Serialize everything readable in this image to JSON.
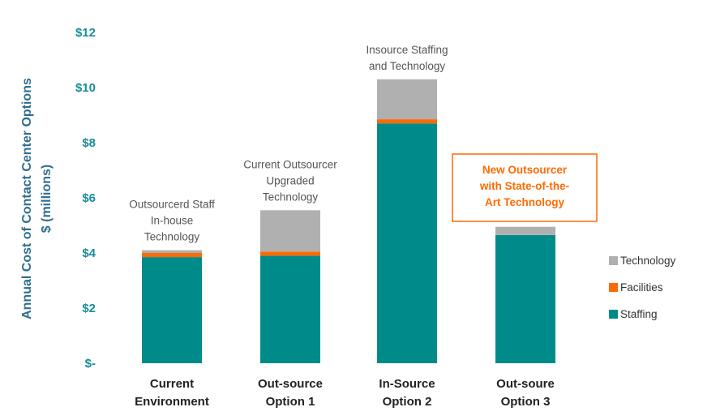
{
  "chart_data": {
    "type": "bar",
    "stacked": true,
    "ylabel_line1": "Annual Cost of Contact Center Options",
    "ylabel_line2": "$ (millions)",
    "ylim": [
      0,
      12
    ],
    "yticks": [
      {
        "value": 0,
        "label": "$-"
      },
      {
        "value": 2,
        "label": "$2"
      },
      {
        "value": 4,
        "label": "$4"
      },
      {
        "value": 6,
        "label": "$6"
      },
      {
        "value": 8,
        "label": "$8"
      },
      {
        "value": 10,
        "label": "$10"
      },
      {
        "value": 12,
        "label": "$12"
      }
    ],
    "grid": false,
    "legend_position": "right",
    "categories": [
      {
        "line1": "Current",
        "line2": "Environment"
      },
      {
        "line1": "Out-source",
        "line2": "Option 1"
      },
      {
        "line1": "In-Source",
        "line2": "Option 2"
      },
      {
        "line1": "Out-soure",
        "line2": "Option 3"
      }
    ],
    "series": [
      {
        "name": "Staffing",
        "color": "#008B8B",
        "values": [
          3.85,
          3.9,
          8.7,
          4.65
        ]
      },
      {
        "name": "Facilities",
        "color": "#FF6A00",
        "values": [
          0.15,
          0.15,
          0.15,
          0.0
        ]
      },
      {
        "name": "Technology",
        "color": "#B0B0B0",
        "values": [
          0.1,
          1.5,
          1.45,
          0.3
        ]
      }
    ],
    "annotations": [
      {
        "category": 0,
        "lines": [
          "Outsourcerd Staff",
          "In-house",
          "Technology"
        ]
      },
      {
        "category": 1,
        "lines": [
          "Current Outsourcer",
          "Upgraded",
          "Technology"
        ]
      },
      {
        "category": 2,
        "lines": [
          "Insource Staffing",
          "and Technology"
        ]
      }
    ],
    "callout": {
      "category": 3,
      "lines": [
        "New Outsourcer",
        "with State-of-the-",
        "Art Technology"
      ],
      "color": "#FF6A00"
    },
    "axis_text_color": "#1A8C9A",
    "ylabel_color": "#2E6E8E"
  }
}
